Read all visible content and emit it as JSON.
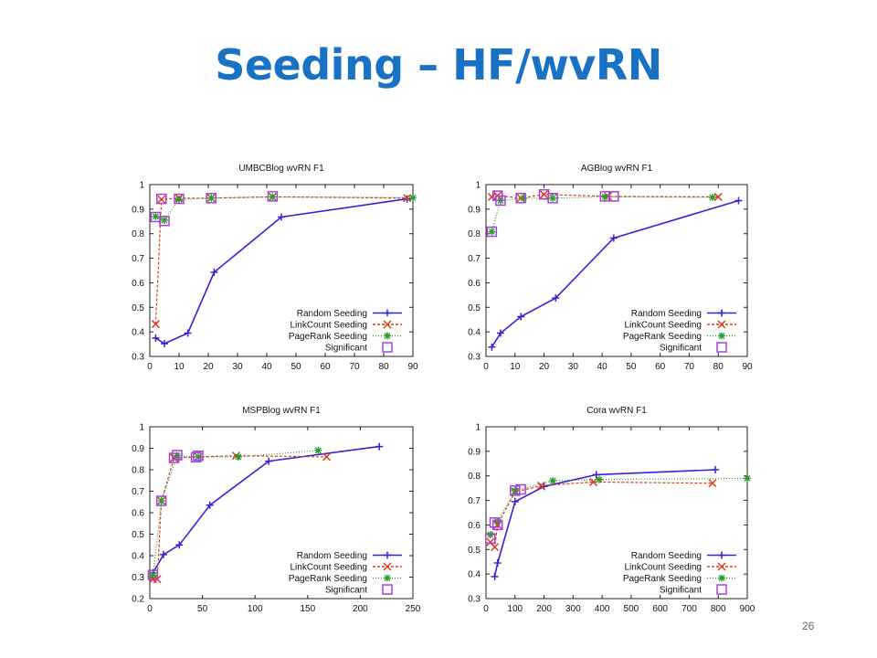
{
  "slide": {
    "title": "Seeding – HF/wvRN",
    "page_number": "26"
  },
  "colors": {
    "title": "#1a72c4",
    "random": "#3b1fd6",
    "linkcount": "#e03a1e",
    "pagerank": "#2f9b2f",
    "significant": "#a742d6"
  },
  "chart_data": [
    {
      "type": "line",
      "title": "UMBCBlog wvRN F1",
      "xlim": [
        0,
        90
      ],
      "ylim": [
        0.3,
        1
      ],
      "xticks": [
        0,
        10,
        20,
        30,
        40,
        50,
        60,
        70,
        80,
        90
      ],
      "yticks": [
        0.3,
        0.4,
        0.5,
        0.6,
        0.7,
        0.8,
        0.9,
        1
      ],
      "legend_position": "bottom-right",
      "series": [
        {
          "name": "Random Seeding",
          "style": "random",
          "points": [
            [
              2,
              0.375
            ],
            [
              5,
              0.352
            ],
            [
              13,
              0.395
            ],
            [
              22,
              0.643
            ],
            [
              45,
              0.868
            ],
            [
              88,
              0.942
            ]
          ]
        },
        {
          "name": "LinkCount Seeding",
          "style": "linkcount",
          "points": [
            [
              2,
              0.432
            ],
            [
              4,
              0.94
            ],
            [
              10,
              0.945
            ],
            [
              21,
              0.945
            ],
            [
              42,
              0.95
            ],
            [
              88,
              0.945
            ]
          ]
        },
        {
          "name": "PageRank Seeding",
          "style": "pagerank",
          "points": [
            [
              2,
              0.87
            ],
            [
              5,
              0.855
            ],
            [
              10,
              0.94
            ],
            [
              21,
              0.945
            ],
            [
              42,
              0.95
            ],
            [
              90,
              0.947
            ]
          ]
        },
        {
          "name": "Significant",
          "style": "significant",
          "points": [
            [
              2,
              0.868
            ],
            [
              5,
              0.852
            ],
            [
              4,
              0.942
            ],
            [
              10,
              0.942
            ],
            [
              21,
              0.945
            ],
            [
              42,
              0.952
            ]
          ]
        }
      ]
    },
    {
      "type": "line",
      "title": "AGBlog wvRN F1",
      "xlim": [
        0,
        90
      ],
      "ylim": [
        0.3,
        1
      ],
      "xticks": [
        0,
        10,
        20,
        30,
        40,
        50,
        60,
        70,
        80,
        90
      ],
      "yticks": [
        0.3,
        0.4,
        0.5,
        0.6,
        0.7,
        0.8,
        0.9,
        1
      ],
      "legend_position": "bottom-right",
      "series": [
        {
          "name": "Random Seeding",
          "style": "random",
          "points": [
            [
              2,
              0.338
            ],
            [
              5,
              0.395
            ],
            [
              12,
              0.462
            ],
            [
              24,
              0.538
            ],
            [
              44,
              0.782
            ],
            [
              87,
              0.935
            ]
          ]
        },
        {
          "name": "LinkCount Seeding",
          "style": "linkcount",
          "points": [
            [
              2,
              0.95
            ],
            [
              4,
              0.955
            ],
            [
              12,
              0.945
            ],
            [
              20,
              0.96
            ],
            [
              42,
              0.952
            ],
            [
              80,
              0.95
            ]
          ]
        },
        {
          "name": "PageRank Seeding",
          "style": "pagerank",
          "points": [
            [
              2,
              0.808
            ],
            [
              5,
              0.935
            ],
            [
              13,
              0.945
            ],
            [
              23,
              0.945
            ],
            [
              41,
              0.95
            ],
            [
              78,
              0.948
            ]
          ]
        },
        {
          "name": "Significant",
          "style": "significant",
          "points": [
            [
              2,
              0.808
            ],
            [
              4,
              0.955
            ],
            [
              5,
              0.935
            ],
            [
              12,
              0.945
            ],
            [
              20,
              0.96
            ],
            [
              23,
              0.945
            ],
            [
              41,
              0.952
            ],
            [
              44,
              0.952
            ]
          ]
        }
      ]
    },
    {
      "type": "line",
      "title": "MSPBlog wvRN F1",
      "xlim": [
        0,
        250
      ],
      "ylim": [
        0.2,
        1
      ],
      "xticks": [
        0,
        50,
        100,
        150,
        200,
        250
      ],
      "yticks": [
        0.2,
        0.3,
        0.4,
        0.5,
        0.6,
        0.7,
        0.8,
        0.9,
        1
      ],
      "legend_position": "bottom-right",
      "series": [
        {
          "name": "Random Seeding",
          "style": "random",
          "points": [
            [
              3,
              0.32
            ],
            [
              13,
              0.405
            ],
            [
              28,
              0.45
            ],
            [
              57,
              0.635
            ],
            [
              113,
              0.84
            ],
            [
              218,
              0.908
            ]
          ]
        },
        {
          "name": "LinkCount Seeding",
          "style": "linkcount",
          "points": [
            [
              3,
              0.29
            ],
            [
              7,
              0.29
            ],
            [
              11,
              0.655
            ],
            [
              23,
              0.855
            ],
            [
              46,
              0.86
            ],
            [
              82,
              0.865
            ],
            [
              168,
              0.86
            ]
          ]
        },
        {
          "name": "PageRank Seeding",
          "style": "pagerank",
          "points": [
            [
              3,
              0.31
            ],
            [
              11,
              0.655
            ],
            [
              26,
              0.865
            ],
            [
              46,
              0.86
            ],
            [
              84,
              0.86
            ],
            [
              160,
              0.89
            ]
          ]
        },
        {
          "name": "Significant",
          "style": "significant",
          "points": [
            [
              3,
              0.31
            ],
            [
              11,
              0.655
            ],
            [
              23,
              0.855
            ],
            [
              26,
              0.868
            ],
            [
              44,
              0.858
            ],
            [
              46,
              0.865
            ]
          ]
        }
      ]
    },
    {
      "type": "line",
      "title": "Cora wvRN F1",
      "xlim": [
        0,
        900
      ],
      "ylim": [
        0.3,
        1
      ],
      "xticks": [
        0,
        100,
        200,
        300,
        400,
        500,
        600,
        700,
        800,
        900
      ],
      "yticks": [
        0.3,
        0.4,
        0.5,
        0.6,
        0.7,
        0.8,
        0.9,
        1
      ],
      "legend_position": "bottom-right",
      "series": [
        {
          "name": "Random Seeding",
          "style": "random",
          "points": [
            [
              30,
              0.39
            ],
            [
              40,
              0.445
            ],
            [
              100,
              0.695
            ],
            [
              200,
              0.757
            ],
            [
              380,
              0.805
            ],
            [
              790,
              0.825
            ]
          ]
        },
        {
          "name": "LinkCount Seeding",
          "style": "linkcount",
          "points": [
            [
              15,
              0.53
            ],
            [
              30,
              0.51
            ],
            [
              40,
              0.6
            ],
            [
              100,
              0.735
            ],
            [
              190,
              0.76
            ],
            [
              370,
              0.775
            ],
            [
              780,
              0.77
            ]
          ]
        },
        {
          "name": "PageRank Seeding",
          "style": "pagerank",
          "points": [
            [
              15,
              0.56
            ],
            [
              40,
              0.615
            ],
            [
              100,
              0.74
            ],
            [
              230,
              0.78
            ],
            [
              390,
              0.785
            ],
            [
              900,
              0.79
            ]
          ]
        },
        {
          "name": "Significant",
          "style": "significant",
          "points": [
            [
              15,
              0.545
            ],
            [
              30,
              0.61
            ],
            [
              40,
              0.6
            ],
            [
              100,
              0.74
            ],
            [
              120,
              0.745
            ]
          ]
        }
      ]
    }
  ]
}
